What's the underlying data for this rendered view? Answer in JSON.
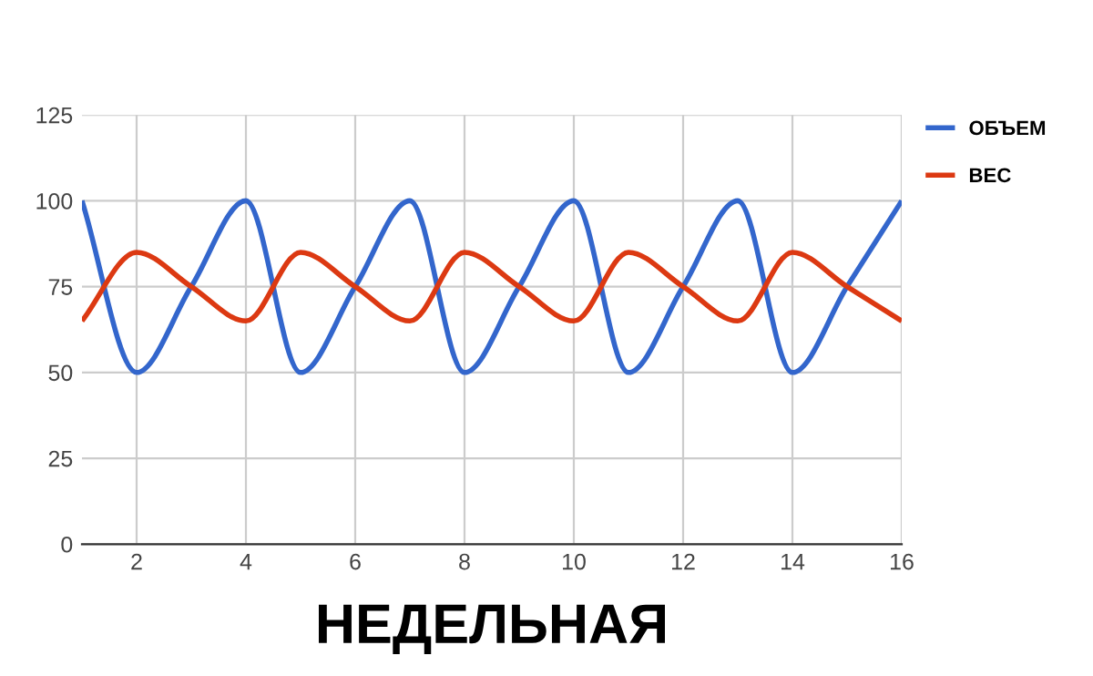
{
  "chart_data": {
    "type": "line",
    "title": "НЕДЕЛЬНАЯ",
    "x": [
      1,
      2,
      3,
      4,
      5,
      6,
      7,
      8,
      9,
      10,
      11,
      12,
      13,
      14,
      15,
      16
    ],
    "series": [
      {
        "name": "ОБЪЕМ",
        "color": "#3366cc",
        "values": [
          100,
          50,
          75,
          100,
          50,
          75,
          100,
          50,
          75,
          100,
          50,
          75,
          100,
          50,
          75,
          100
        ]
      },
      {
        "name": "ВЕС",
        "color": "#dc3912",
        "values": [
          65,
          85,
          75,
          65,
          85,
          75,
          65,
          85,
          75,
          65,
          85,
          75,
          65,
          85,
          75,
          65
        ]
      }
    ],
    "xlim": [
      1,
      16
    ],
    "xticks": [
      2,
      4,
      6,
      8,
      10,
      12,
      14,
      16
    ],
    "ylim": [
      0,
      125
    ],
    "yticks": [
      0,
      25,
      50,
      75,
      100,
      125
    ],
    "grid": true,
    "legend": "top right",
    "marker": "none",
    "line_style": "solid"
  }
}
